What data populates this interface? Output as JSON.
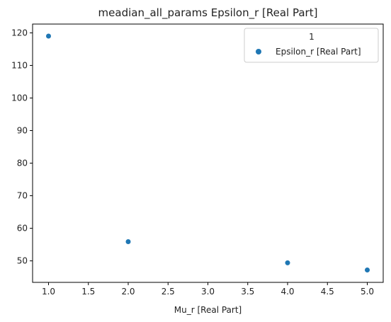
{
  "chart_data": {
    "type": "scatter",
    "title": "meadian_all_params Epsilon_r [Real Part]",
    "xlabel": "Mu_r [Real Part]",
    "ylabel": "",
    "xlim": [
      0.8,
      5.2
    ],
    "ylim": [
      43.4,
      122.7
    ],
    "xticks": [
      "1.0",
      "1.5",
      "2.0",
      "2.5",
      "3.0",
      "3.5",
      "4.0",
      "4.5",
      "5.0"
    ],
    "yticks": [
      "50",
      "60",
      "70",
      "80",
      "90",
      "100",
      "110",
      "120"
    ],
    "grid": false,
    "legend": {
      "title": "1",
      "placement": "top-right"
    },
    "series": [
      {
        "name": "Epsilon_r [Real Part]",
        "color": "#1f77b4",
        "x": [
          1.0,
          2.0,
          4.0,
          5.0
        ],
        "y": [
          119.0,
          55.9,
          49.4,
          47.2
        ]
      }
    ]
  }
}
